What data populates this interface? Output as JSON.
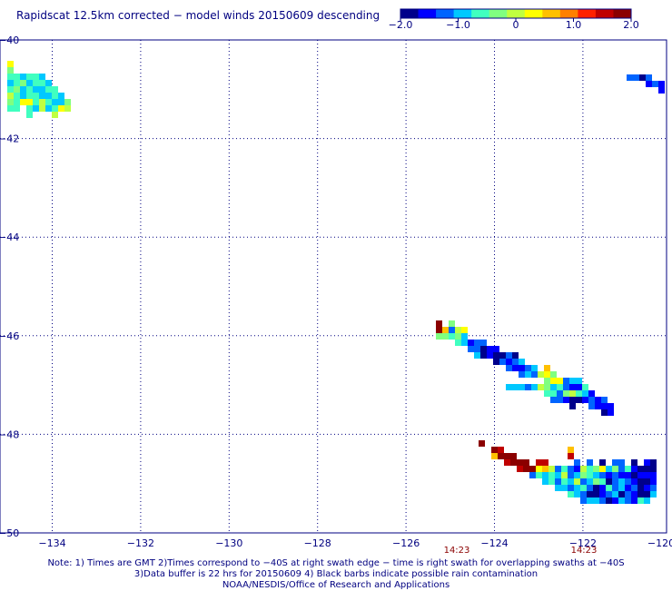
{
  "title": "Rapidscat 12.5km corrected − model winds 20150609 descending",
  "colorbar": {
    "ticks": [
      "−2.0",
      "−1.0",
      "0",
      "1.0",
      "2.0"
    ],
    "min": -2.0,
    "max": 2.0,
    "colors": [
      "#00008b",
      "#0000ff",
      "#0064ff",
      "#00c8ff",
      "#40ffc0",
      "#80ff80",
      "#c0ff40",
      "#ffff00",
      "#ffc000",
      "#ff8000",
      "#ff2000",
      "#c00000",
      "#8b0000"
    ]
  },
  "map": {
    "lon_ticks": [
      "−134",
      "−132",
      "−130",
      "−128",
      "−126",
      "−124",
      "−122",
      "−120"
    ],
    "lat_ticks": [
      "−40",
      "−42",
      "−44",
      "−46",
      "−48",
      "−50"
    ],
    "lon_range": [
      -134.9,
      -120.0
    ],
    "lat_range": [
      -50.0,
      -40.0
    ],
    "grid": "dotted",
    "swath_times": [
      "14:23",
      "14:23"
    ]
  },
  "notes": {
    "line1": "Note: 1) Times are GMT 2)Times correspond to −40S at right swath edge − time is right swath for overlapping swaths at −40S",
    "line2": "3)Data buffer is 22 hrs for 20150609 4) Black barbs indicate possible rain contamination",
    "line3": "NOAA/NESDIS/Office of Research and Applications"
  }
}
